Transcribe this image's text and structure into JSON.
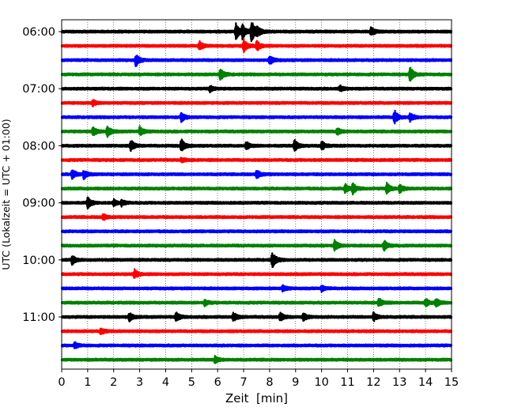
{
  "chart_data": {
    "type": "line",
    "title": "",
    "xlabel": "Zeit  [min]",
    "ylabel": "UTC (Lokalzeit = UTC + 01:00)",
    "xlim": [
      0,
      15
    ],
    "x_ticks": [
      0,
      1,
      2,
      3,
      4,
      5,
      6,
      7,
      8,
      9,
      10,
      11,
      12,
      13,
      14,
      15
    ],
    "x_tick_labels": [
      "0",
      "1",
      "2",
      "3",
      "4",
      "5",
      "6",
      "7",
      "8",
      "9",
      "10",
      "11",
      "12",
      "13",
      "14",
      "15"
    ],
    "y_tick_labels": [
      "06:00",
      "07:00",
      "08:00",
      "09:00",
      "10:00",
      "11:00"
    ],
    "y_tick_rows": [
      0,
      4,
      8,
      12,
      16,
      20
    ],
    "grid": "vertical dotted at each minute",
    "legend": "none",
    "row_minutes": 15,
    "color_cycle": [
      "#000000",
      "#ff0000",
      "#0000ff",
      "#008000"
    ],
    "series": [
      {
        "start": "06:00",
        "events": [
          {
            "t": 6.7,
            "amp": 0.55
          },
          {
            "t": 6.95,
            "amp": 0.45
          },
          {
            "t": 7.3,
            "amp": 0.75
          },
          {
            "t": 7.5,
            "amp": 0.35
          },
          {
            "t": 11.9,
            "amp": 0.3
          }
        ]
      },
      {
        "start": "06:15",
        "events": [
          {
            "t": 5.3,
            "amp": 0.3
          },
          {
            "t": 7.0,
            "amp": 0.45
          },
          {
            "t": 7.5,
            "amp": 0.35
          }
        ]
      },
      {
        "start": "06:30",
        "events": [
          {
            "t": 2.85,
            "amp": 0.4
          },
          {
            "t": 8.0,
            "amp": 0.3
          }
        ]
      },
      {
        "start": "06:45",
        "events": [
          {
            "t": 6.1,
            "amp": 0.4
          },
          {
            "t": 13.4,
            "amp": 0.5
          }
        ]
      },
      {
        "start": "07:00",
        "events": [
          {
            "t": 5.7,
            "amp": 0.2
          },
          {
            "t": 10.7,
            "amp": 0.2
          }
        ]
      },
      {
        "start": "07:15",
        "events": [
          {
            "t": 1.2,
            "amp": 0.2
          }
        ]
      },
      {
        "start": "07:30",
        "events": [
          {
            "t": 4.6,
            "amp": 0.3
          },
          {
            "t": 12.8,
            "amp": 0.5
          },
          {
            "t": 13.4,
            "amp": 0.3
          }
        ]
      },
      {
        "start": "07:45",
        "events": [
          {
            "t": 1.2,
            "amp": 0.3
          },
          {
            "t": 1.75,
            "amp": 0.35
          },
          {
            "t": 3.0,
            "amp": 0.3
          },
          {
            "t": 10.6,
            "amp": 0.25
          }
        ]
      },
      {
        "start": "08:00",
        "events": [
          {
            "t": 2.65,
            "amp": 0.4
          },
          {
            "t": 4.6,
            "amp": 0.45
          },
          {
            "t": 7.1,
            "amp": 0.25
          },
          {
            "t": 8.95,
            "amp": 0.4
          },
          {
            "t": 10.0,
            "amp": 0.3
          }
        ]
      },
      {
        "start": "08:15",
        "events": [
          {
            "t": 4.6,
            "amp": 0.15
          }
        ]
      },
      {
        "start": "08:30",
        "events": [
          {
            "t": 0.4,
            "amp": 0.3
          },
          {
            "t": 0.85,
            "amp": 0.3
          },
          {
            "t": 7.5,
            "amp": 0.3
          }
        ]
      },
      {
        "start": "08:45",
        "events": [
          {
            "t": 10.9,
            "amp": 0.3
          },
          {
            "t": 11.2,
            "amp": 0.35
          },
          {
            "t": 12.5,
            "amp": 0.4
          },
          {
            "t": 13.0,
            "amp": 0.3
          }
        ]
      },
      {
        "start": "09:00",
        "events": [
          {
            "t": 1.0,
            "amp": 0.4
          },
          {
            "t": 2.0,
            "amp": 0.2
          },
          {
            "t": 2.3,
            "amp": 0.2
          }
        ]
      },
      {
        "start": "09:15",
        "events": [
          {
            "t": 1.6,
            "amp": 0.2
          }
        ]
      },
      {
        "start": "09:30",
        "events": []
      },
      {
        "start": "09:45",
        "events": [
          {
            "t": 10.5,
            "amp": 0.35
          },
          {
            "t": 12.4,
            "amp": 0.35
          }
        ]
      },
      {
        "start": "10:00",
        "events": [
          {
            "t": 0.4,
            "amp": 0.3
          },
          {
            "t": 8.1,
            "amp": 0.55
          }
        ]
      },
      {
        "start": "10:15",
        "events": [
          {
            "t": 2.8,
            "amp": 0.3
          }
        ]
      },
      {
        "start": "10:30",
        "events": [
          {
            "t": 8.5,
            "amp": 0.2
          },
          {
            "t": 10.0,
            "amp": 0.2
          }
        ]
      },
      {
        "start": "10:45",
        "events": [
          {
            "t": 5.5,
            "amp": 0.2
          },
          {
            "t": 12.2,
            "amp": 0.3
          },
          {
            "t": 14.0,
            "amp": 0.3
          },
          {
            "t": 14.4,
            "amp": 0.3
          }
        ]
      },
      {
        "start": "11:00",
        "events": [
          {
            "t": 2.6,
            "amp": 0.3
          },
          {
            "t": 4.4,
            "amp": 0.3
          },
          {
            "t": 6.6,
            "amp": 0.3
          },
          {
            "t": 8.4,
            "amp": 0.3
          },
          {
            "t": 9.3,
            "amp": 0.25
          },
          {
            "t": 12.0,
            "amp": 0.3
          }
        ]
      },
      {
        "start": "11:15",
        "events": [
          {
            "t": 1.5,
            "amp": 0.2
          }
        ]
      },
      {
        "start": "11:30",
        "events": [
          {
            "t": 0.5,
            "amp": 0.2
          }
        ]
      },
      {
        "start": "11:45",
        "events": [
          {
            "t": 5.9,
            "amp": 0.25
          }
        ]
      }
    ]
  }
}
